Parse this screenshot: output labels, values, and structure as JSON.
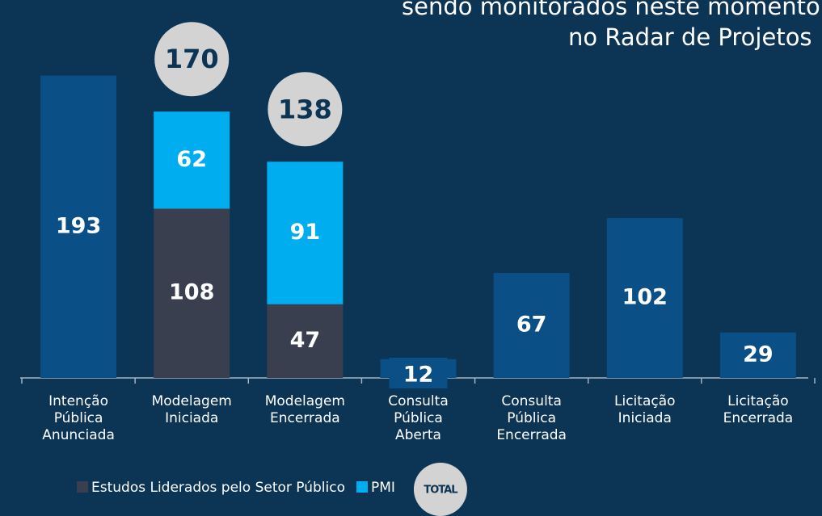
{
  "chart_data": {
    "type": "stacked_bar",
    "title_lines": [
      "sendo monitorados neste momento",
      "no Radar de Projetos"
    ],
    "categories": [
      [
        "Intenção",
        "Pública",
        "Anunciada"
      ],
      [
        "Modelagem",
        "Iniciada"
      ],
      [
        "Modelagem",
        "Encerrada"
      ],
      [
        "Consulta",
        "Pública",
        "Aberta"
      ],
      [
        "Consulta",
        "Pública",
        "Encerrada"
      ],
      [
        "Licitação",
        "Iniciada"
      ],
      [
        "Licitação",
        "Encerrada"
      ]
    ],
    "values": [
      193,
      null,
      null,
      12,
      67,
      102,
      29
    ],
    "color": "#0a4f86",
    "series": [
      {
        "name": "Estudos Liderados pelo Setor Público",
        "color": "#3a3f4f",
        "values": [
          null,
          108,
          47,
          null,
          null,
          null,
          null
        ]
      },
      {
        "name": "PMI",
        "color": "#00aeef",
        "values": [
          null,
          62,
          91,
          null,
          null,
          null,
          null
        ]
      }
    ],
    "totals": [
      null,
      170,
      138,
      null,
      null,
      null,
      null
    ],
    "total_label": "TOTAL",
    "ylim": [
      0,
      200
    ]
  }
}
